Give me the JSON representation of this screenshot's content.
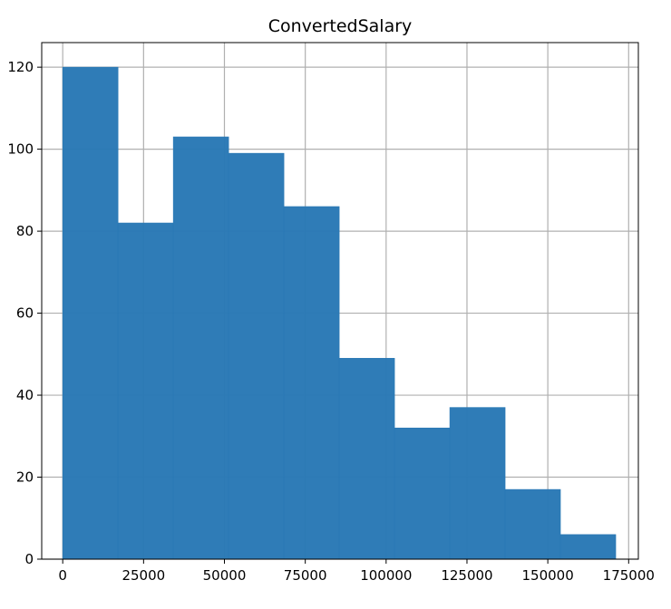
{
  "chart_data": {
    "type": "bar",
    "title": "ConvertedSalary",
    "xlabel": "",
    "ylabel": "",
    "bins": [
      [
        0,
        17100
      ],
      [
        17100,
        34200
      ],
      [
        34200,
        51300
      ],
      [
        51300,
        68400
      ],
      [
        68400,
        85500
      ],
      [
        85500,
        102600
      ],
      [
        102600,
        119700
      ],
      [
        119700,
        136800
      ],
      [
        136800,
        153900
      ],
      [
        153900,
        171000
      ]
    ],
    "values": [
      120,
      82,
      103,
      99,
      86,
      49,
      32,
      37,
      17,
      6
    ],
    "xlim": [
      -6500,
      178000
    ],
    "ylim": [
      0,
      126
    ],
    "xticks": [
      0,
      25000,
      50000,
      75000,
      100000,
      125000,
      150000,
      175000
    ],
    "xtick_labels": [
      "0",
      "25000",
      "50000",
      "75000",
      "100000",
      "125000",
      "150000",
      "175000"
    ],
    "yticks": [
      0,
      20,
      40,
      60,
      80,
      100,
      120
    ],
    "ytick_labels": [
      "0",
      "20",
      "40",
      "60",
      "80",
      "100",
      "120"
    ],
    "grid": true,
    "bar_color": "#2878b5",
    "grid_color": "#b0b0b0"
  }
}
